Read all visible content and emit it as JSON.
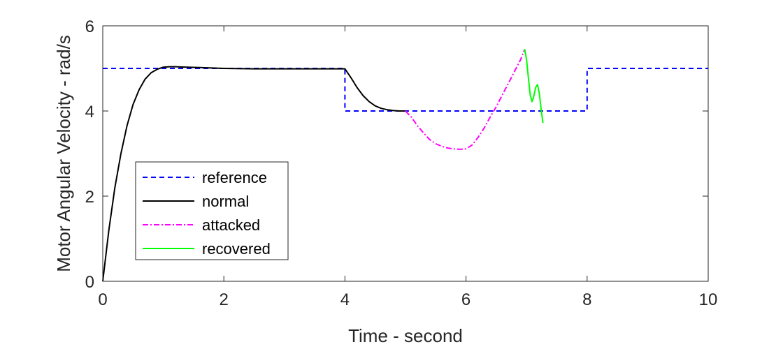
{
  "chart_data": {
    "type": "line",
    "title": "",
    "xlabel": "Time - second",
    "ylabel": "Motor Angular Velocity - rad/s",
    "xlim": [
      0,
      10
    ],
    "ylim": [
      0,
      6
    ],
    "xticks": [
      0,
      2,
      4,
      6,
      8,
      10
    ],
    "yticks": [
      0,
      2,
      4,
      6
    ],
    "xtick_labels": [
      "0",
      "2",
      "4",
      "6",
      "8",
      "10"
    ],
    "ytick_labels": [
      "0",
      "2",
      "4",
      "6"
    ],
    "grid": false,
    "legend_position": "bottom-left",
    "series": [
      {
        "name": "reference",
        "color": "#0000ff",
        "style": "dashed",
        "x": [
          0,
          4,
          4,
          8,
          8,
          10
        ],
        "y": [
          5,
          5,
          4,
          4,
          5,
          5
        ]
      },
      {
        "name": "normal",
        "color": "#000000",
        "style": "solid",
        "x": [
          0,
          0.1,
          0.2,
          0.3,
          0.4,
          0.5,
          0.6,
          0.7,
          0.8,
          0.9,
          1.0,
          1.1,
          1.2,
          1.4,
          1.6,
          2.0,
          2.5,
          3.0,
          3.5,
          4.0,
          4.1,
          4.2,
          4.3,
          4.4,
          4.5,
          4.6,
          4.7,
          4.8,
          4.9,
          5.0
        ],
        "y": [
          0,
          1.2,
          2.2,
          3.0,
          3.65,
          4.15,
          4.5,
          4.75,
          4.9,
          4.98,
          5.03,
          5.04,
          5.04,
          5.03,
          5.02,
          5.0,
          4.99,
          4.99,
          4.99,
          4.99,
          4.78,
          4.55,
          4.36,
          4.22,
          4.12,
          4.06,
          4.03,
          4.01,
          4.0,
          4.0
        ]
      },
      {
        "name": "attacked",
        "color": "#ff00ff",
        "style": "dashdot",
        "x": [
          5.0,
          5.1,
          5.2,
          5.3,
          5.4,
          5.5,
          5.6,
          5.7,
          5.8,
          5.9,
          6.0,
          6.1,
          6.2,
          6.3,
          6.4,
          6.5,
          6.6,
          6.7,
          6.8,
          6.9,
          6.97
        ],
        "y": [
          4.0,
          3.85,
          3.65,
          3.48,
          3.33,
          3.23,
          3.17,
          3.13,
          3.11,
          3.1,
          3.11,
          3.2,
          3.38,
          3.6,
          3.86,
          4.1,
          4.38,
          4.65,
          4.93,
          5.2,
          5.45
        ]
      },
      {
        "name": "recovered",
        "color": "#00ff00",
        "style": "solid",
        "x": [
          6.97,
          7.0,
          7.03,
          7.06,
          7.09,
          7.12,
          7.15,
          7.18,
          7.21,
          7.24,
          7.27
        ],
        "y": [
          5.45,
          5.2,
          4.78,
          4.38,
          4.22,
          4.35,
          4.55,
          4.62,
          4.42,
          4.05,
          3.72
        ]
      }
    ]
  }
}
